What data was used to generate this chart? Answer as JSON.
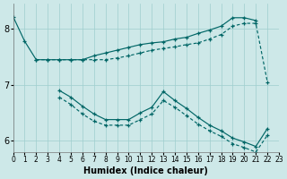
{
  "bg_color": "#cde8e8",
  "grid_color": "#9ecece",
  "line_color": "#006666",
  "xlabel": "Humidex (Indice chaleur)",
  "xlim": [
    0,
    23
  ],
  "ylim": [
    5.8,
    8.45
  ],
  "yticks": [
    6,
    7,
    8
  ],
  "xtick_labels": [
    "0",
    "1",
    "2",
    "3",
    "4",
    "5",
    "6",
    "7",
    "8",
    "9",
    "10",
    "11",
    "12",
    "13",
    "14",
    "15",
    "16",
    "17",
    "18",
    "19",
    "20",
    "21",
    "22",
    "23"
  ],
  "series": [
    {
      "x": [
        0,
        1,
        2,
        3,
        4,
        5,
        6,
        7,
        8,
        9,
        10,
        11,
        12,
        13,
        14,
        15,
        16,
        17,
        18,
        19,
        20,
        21
      ],
      "y": [
        8.22,
        7.78,
        7.45,
        7.45,
        7.45,
        7.45,
        7.45,
        7.52,
        7.57,
        7.62,
        7.67,
        7.72,
        7.75,
        7.77,
        7.82,
        7.85,
        7.92,
        7.98,
        8.05,
        8.2,
        8.2,
        8.15
      ],
      "solid": true
    },
    {
      "x": [
        2,
        3,
        4,
        5,
        6,
        7,
        8,
        9,
        10,
        11,
        12,
        13,
        14,
        15,
        16,
        17,
        18,
        19,
        20,
        21,
        22
      ],
      "y": [
        7.45,
        7.45,
        7.45,
        7.45,
        7.45,
        7.45,
        7.45,
        7.48,
        7.52,
        7.57,
        7.62,
        7.65,
        7.68,
        7.72,
        7.75,
        7.82,
        7.9,
        8.05,
        8.1,
        8.1,
        7.05
      ],
      "solid": false
    },
    {
      "x": [
        4,
        5,
        6,
        7,
        8,
        9,
        10,
        11,
        12,
        13,
        14,
        15,
        16,
        17,
        18,
        19,
        20,
        21,
        22
      ],
      "y": [
        6.9,
        6.78,
        6.62,
        6.48,
        6.38,
        6.38,
        6.38,
        6.5,
        6.6,
        6.88,
        6.72,
        6.58,
        6.42,
        6.28,
        6.18,
        6.05,
        5.98,
        5.9,
        6.22
      ],
      "solid": true
    },
    {
      "x": [
        4,
        5,
        6,
        7,
        8,
        9,
        10,
        11,
        12,
        13,
        14,
        15,
        16,
        17,
        18,
        19,
        20,
        21,
        22
      ],
      "y": [
        6.78,
        6.65,
        6.48,
        6.35,
        6.28,
        6.28,
        6.28,
        6.38,
        6.48,
        6.72,
        6.6,
        6.45,
        6.3,
        6.18,
        6.08,
        5.95,
        5.88,
        5.8,
        6.1
      ],
      "solid": false
    }
  ]
}
